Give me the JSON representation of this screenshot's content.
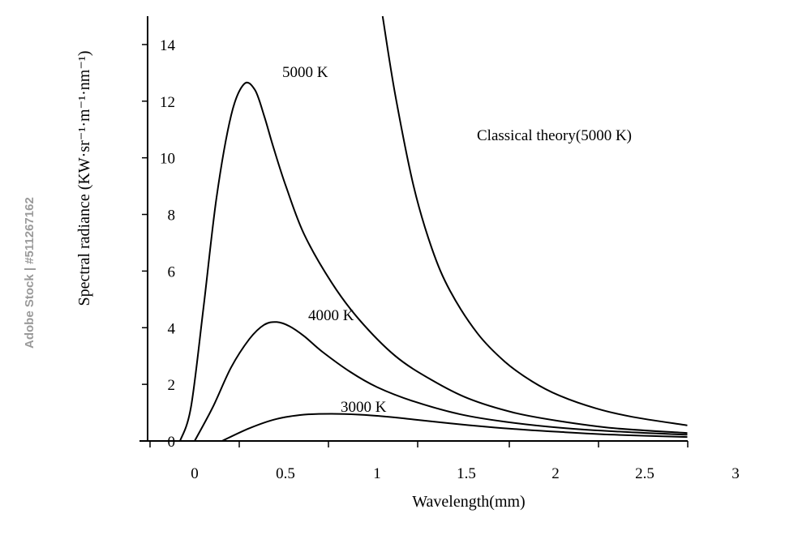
{
  "watermark": "Adobe Stock | #511267162",
  "chart_data": {
    "type": "line",
    "title": "",
    "xlabel": "Wavelength(mm)",
    "ylabel": "Spectral radiance (KW·sr⁻¹·m⁻¹·nm⁻¹)",
    "xlim": [
      -0.27,
      3.0
    ],
    "ylim": [
      0,
      15
    ],
    "x_ticks": [
      0,
      0.5,
      1,
      1.5,
      2,
      2.5,
      3
    ],
    "x_tick_labels": [
      "0",
      "0.5",
      "1",
      "1.5",
      "2",
      "2.5",
      "3"
    ],
    "y_ticks": [
      0,
      2,
      4,
      6,
      8,
      10,
      12,
      14
    ],
    "y_tick_labels": [
      "0",
      "2",
      "4",
      "6",
      "8",
      "10",
      "12",
      "14"
    ],
    "grid": false,
    "legend": "none",
    "line_color": "#000000",
    "series": [
      {
        "name": "5000 K",
        "x": [
          -0.08,
          -0.02,
          0.05,
          0.12,
          0.2,
          0.27,
          0.33,
          0.38,
          0.43,
          0.5,
          0.6,
          0.75,
          0.9,
          1.1,
          1.3,
          1.5,
          1.75,
          2.0,
          2.3,
          2.7
        ],
        "y": [
          0,
          1.2,
          4.8,
          8.6,
          11.5,
          12.6,
          12.4,
          11.5,
          10.4,
          9.0,
          7.3,
          5.6,
          4.3,
          3.0,
          2.15,
          1.5,
          1.0,
          0.7,
          0.45,
          0.28
        ]
      },
      {
        "name": "4000 K",
        "x": [
          0.0,
          0.1,
          0.2,
          0.3,
          0.38,
          0.45,
          0.52,
          0.6,
          0.7,
          0.85,
          1.0,
          1.2,
          1.45,
          1.7,
          2.0,
          2.35,
          2.7
        ],
        "y": [
          0,
          1.2,
          2.6,
          3.6,
          4.1,
          4.2,
          4.05,
          3.7,
          3.15,
          2.45,
          1.9,
          1.4,
          0.95,
          0.68,
          0.47,
          0.32,
          0.22
        ]
      },
      {
        "name": "3000 K",
        "x": [
          0.15,
          0.3,
          0.45,
          0.6,
          0.75,
          0.9,
          1.05,
          1.2,
          1.4,
          1.6,
          1.8,
          2.0,
          2.3,
          2.7
        ],
        "y": [
          0,
          0.45,
          0.78,
          0.93,
          0.96,
          0.93,
          0.86,
          0.76,
          0.62,
          0.5,
          0.4,
          0.32,
          0.22,
          0.14
        ]
      },
      {
        "name": "Classical theory(5000 K)",
        "x": [
          1.03,
          1.1,
          1.2,
          1.3,
          1.4,
          1.55,
          1.7,
          1.85,
          2.0,
          2.2,
          2.4,
          2.7
        ],
        "y": [
          15.0,
          12.2,
          9.0,
          6.8,
          5.3,
          3.8,
          2.8,
          2.1,
          1.6,
          1.15,
          0.85,
          0.55
        ]
      }
    ]
  }
}
